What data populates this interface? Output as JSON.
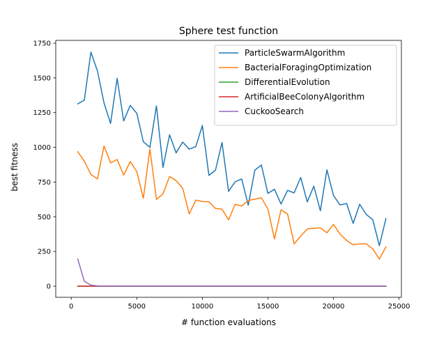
{
  "chart_data": {
    "type": "line",
    "title": "Sphere test function",
    "xlabel": "# function evaluations",
    "ylabel": "best fitness",
    "xlim": [
      -1180,
      25180
    ],
    "ylim": [
      -80,
      1770
    ],
    "xticks": [
      0,
      5000,
      10000,
      15000,
      20000,
      25000
    ],
    "yticks": [
      0,
      250,
      500,
      750,
      1000,
      1250,
      1500,
      1750
    ],
    "grid": false,
    "legend_position": "top-right",
    "x": [
      500,
      1000,
      1500,
      2000,
      2500,
      3000,
      3500,
      4000,
      4500,
      5000,
      5500,
      6000,
      6500,
      7000,
      7500,
      8000,
      8500,
      9000,
      9500,
      10000,
      10500,
      11000,
      11500,
      12000,
      12500,
      13000,
      13500,
      14000,
      14500,
      15000,
      15500,
      16000,
      16500,
      17000,
      17500,
      18000,
      18500,
      19000,
      19500,
      20000,
      20500,
      21000,
      21500,
      22000,
      22500,
      23000,
      23500,
      24000
    ],
    "series": [
      {
        "name": "ParticleSwarmAlgorithm",
        "color": "#1f77b4",
        "values": [
          1313,
          1340,
          1685,
          1550,
          1320,
          1172,
          1497,
          1190,
          1302,
          1245,
          1040,
          1000,
          1298,
          855,
          1090,
          960,
          1038,
          987,
          1005,
          1157,
          798,
          835,
          1035,
          683,
          752,
          772,
          583,
          835,
          873,
          668,
          698,
          592,
          690,
          672,
          783,
          607,
          720,
          543,
          838,
          653,
          585,
          596,
          452,
          590,
          517,
          478,
          292,
          487
        ]
      },
      {
        "name": "BacterialForagingOptimization",
        "color": "#ff7f0e",
        "values": [
          968,
          900,
          805,
          773,
          1010,
          888,
          912,
          800,
          898,
          825,
          633,
          988,
          625,
          665,
          790,
          760,
          705,
          520,
          620,
          610,
          608,
          560,
          555,
          478,
          590,
          578,
          617,
          627,
          637,
          555,
          340,
          550,
          520,
          305,
          360,
          412,
          417,
          420,
          385,
          445,
          375,
          330,
          298,
          305,
          305,
          268,
          195,
          283
        ]
      },
      {
        "name": "DifferentialEvolution",
        "color": "#2ca02c",
        "values": [
          0,
          0,
          0,
          0,
          0,
          0,
          0,
          0,
          0,
          0,
          0,
          0,
          0,
          0,
          0,
          0,
          0,
          0,
          0,
          0,
          0,
          0,
          0,
          0,
          0,
          0,
          0,
          0,
          0,
          0,
          0,
          0,
          0,
          0,
          0,
          0,
          0,
          0,
          0,
          0,
          0,
          0,
          0,
          0,
          0,
          0,
          0,
          0
        ]
      },
      {
        "name": "ArtificialBeeColonyAlgorithm",
        "color": "#d62728",
        "values": [
          0,
          0,
          0,
          0,
          0,
          0,
          0,
          0,
          0,
          0,
          0,
          0,
          0,
          0,
          0,
          0,
          0,
          0,
          0,
          0,
          0,
          0,
          0,
          0,
          0,
          0,
          0,
          0,
          0,
          0,
          0,
          0,
          0,
          0,
          0,
          0,
          0,
          0,
          0,
          0,
          0,
          0,
          0,
          0,
          0,
          0,
          0,
          0
        ]
      },
      {
        "name": "CuckooSearch",
        "color": "#9467bd",
        "values": [
          195,
          35,
          8,
          2,
          1,
          0,
          0,
          0,
          0,
          0,
          0,
          0,
          0,
          0,
          0,
          0,
          0,
          0,
          0,
          0,
          0,
          0,
          0,
          0,
          0,
          0,
          0,
          0,
          0,
          0,
          0,
          0,
          0,
          0,
          0,
          0,
          0,
          0,
          0,
          0,
          0,
          0,
          0,
          0,
          0,
          0,
          0,
          0
        ]
      }
    ]
  }
}
